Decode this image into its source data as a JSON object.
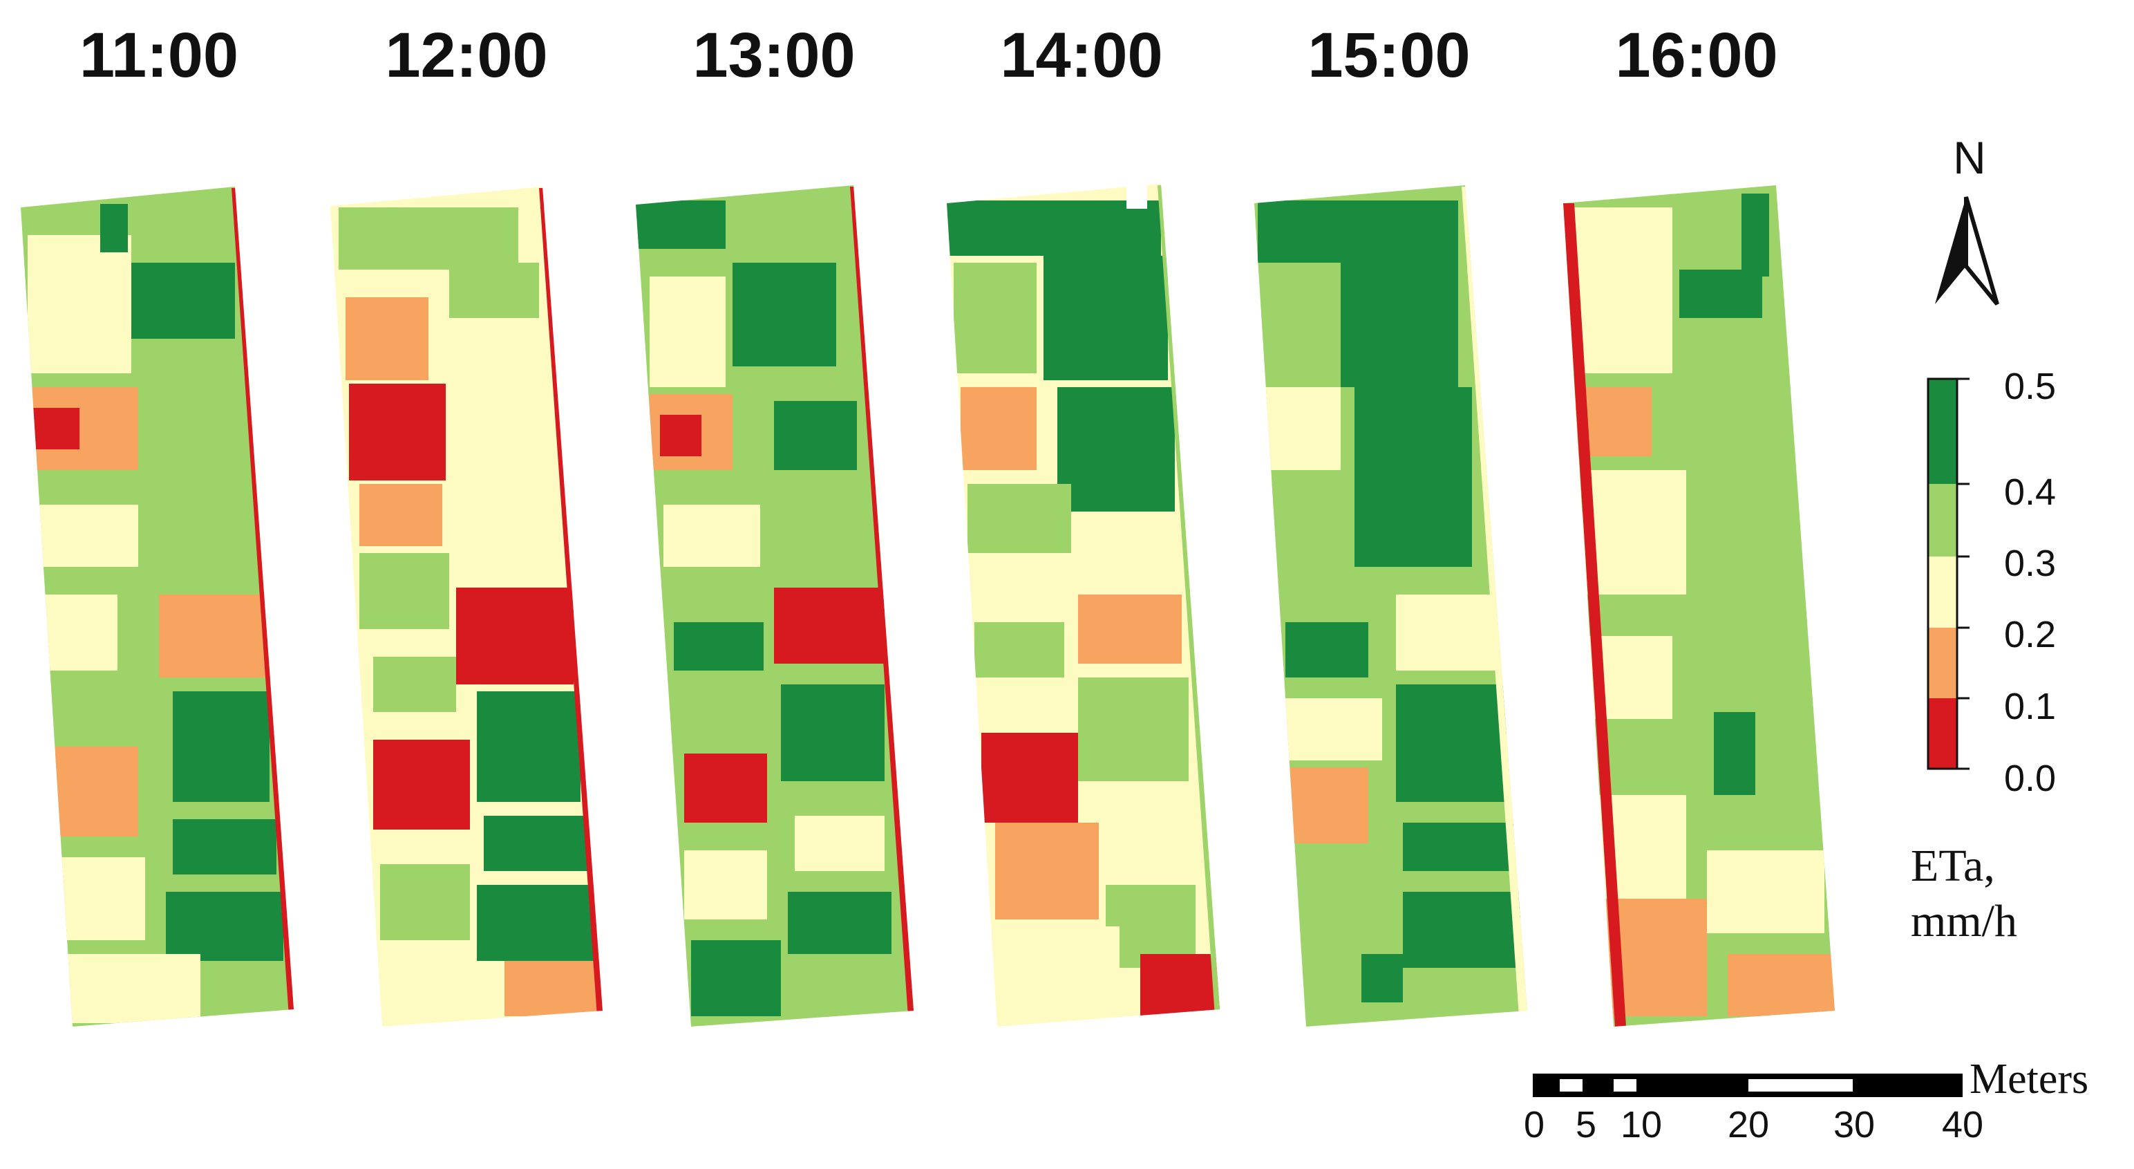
{
  "panels": [
    {
      "time": "11:00"
    },
    {
      "time": "12:00"
    },
    {
      "time": "13:00"
    },
    {
      "time": "14:00"
    },
    {
      "time": "15:00"
    },
    {
      "time": "16:00"
    }
  ],
  "north_arrow": {
    "label": "N"
  },
  "legend": {
    "title_line1": "ETa,",
    "title_line2": "mm/h",
    "ticks": [
      "0.5",
      "0.4",
      "0.3",
      "0.2",
      "0.1",
      "0.0"
    ],
    "classes": [
      {
        "range": "0.4-0.5",
        "color": "#1a8a3e"
      },
      {
        "range": "0.3-0.4",
        "color": "#9ed36a"
      },
      {
        "range": "0.2-0.3",
        "color": "#fefbc2"
      },
      {
        "range": "0.1-0.2",
        "color": "#f6a460"
      },
      {
        "range": "0.0-0.1",
        "color": "#d71920"
      }
    ]
  },
  "scale_bar": {
    "unit": "Meters",
    "labels": [
      "0",
      "5",
      "10",
      "20",
      "30",
      "40"
    ]
  }
}
